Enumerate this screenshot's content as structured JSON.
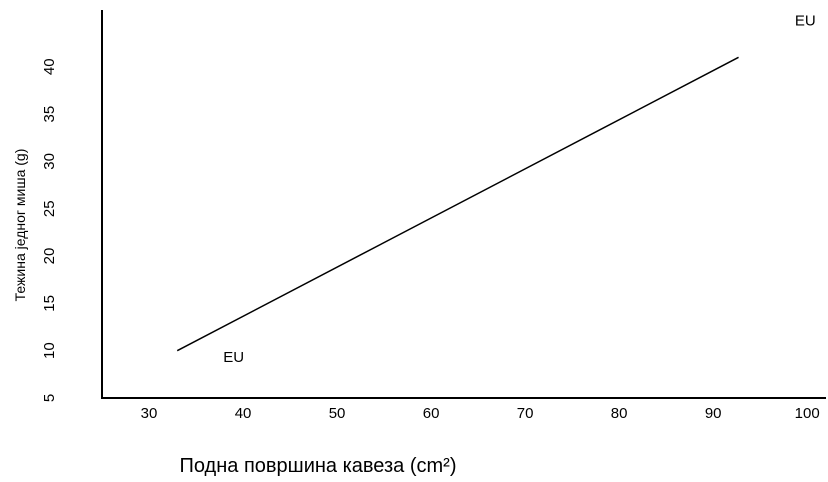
{
  "chart_data": {
    "type": "line",
    "title": "",
    "xlabel": "Подна површина кавеза (cm²)",
    "ylabel": "Тежина једног миша (g)",
    "xlim": [
      25,
      102
    ],
    "ylim": [
      5,
      46
    ],
    "x_ticks": [
      30,
      40,
      50,
      60,
      70,
      80,
      90,
      100
    ],
    "y_ticks": [
      5,
      10,
      15,
      20,
      25,
      30,
      35,
      40
    ],
    "grid": false,
    "series": [
      {
        "x": [
          33,
          92.7
        ],
        "y": [
          10,
          41
        ]
      }
    ],
    "annotations": [
      {
        "text": "EU",
        "x": 39,
        "y": 9.2
      },
      {
        "text": "EU",
        "x": 99.8,
        "y": 44.8
      }
    ]
  }
}
